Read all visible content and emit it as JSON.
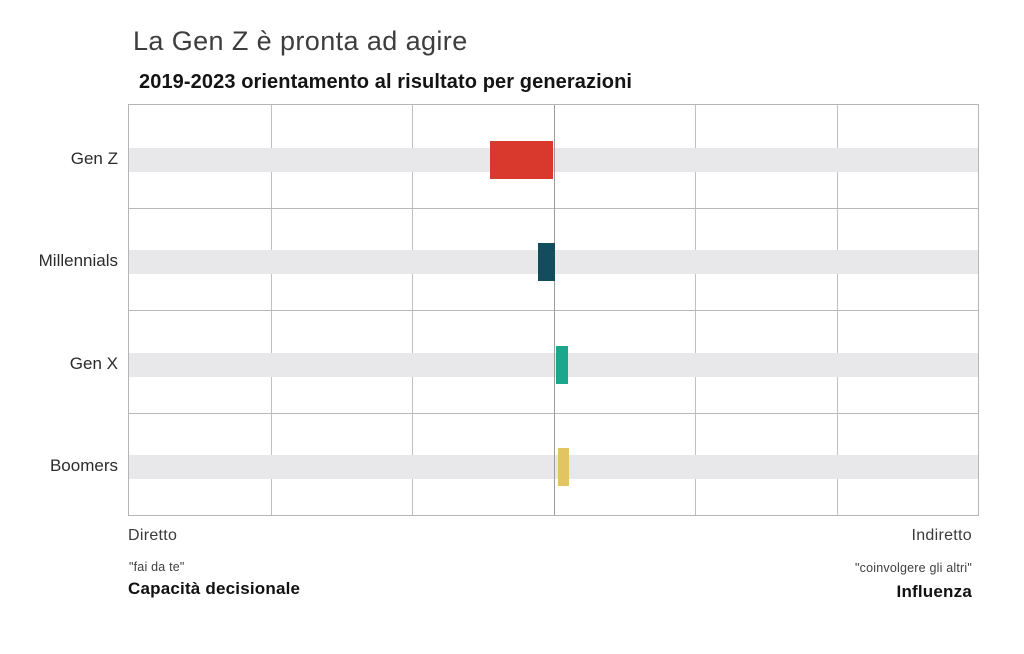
{
  "header": {
    "title": "La Gen Z è pronta ad agire",
    "subtitle": "2019-2023 orientamento al risultato per generazioni"
  },
  "chart_data": {
    "type": "bar",
    "orientation": "horizontal_diverging",
    "title": "La Gen Z è pronta ad agire",
    "subtitle": "2019-2023 orientamento al risultato per generazioni",
    "categories": [
      "Gen Z",
      "Millennials",
      "Gen X",
      "Boomers"
    ],
    "series": [
      {
        "name": "Gen Z",
        "start": -0.45,
        "end": 0.0,
        "color": "#d8392c"
      },
      {
        "name": "Millennials",
        "start": -0.11,
        "end": 0.01,
        "color": "#114d5c"
      },
      {
        "name": "Gen X",
        "start": 0.02,
        "end": 0.1,
        "color": "#1aa78c"
      },
      {
        "name": "Boomers",
        "start": 0.03,
        "end": 0.11,
        "color": "#e2c462"
      }
    ],
    "xlim": [
      -3,
      3
    ],
    "x_tick_labels": [],
    "legend": "none",
    "grid": {
      "vertical_divisions": 6,
      "horizontal_panels": 4,
      "row_highlight_color": "#e8e8ea",
      "gridline_color": "#bfbfbf",
      "center_line_color": "#9c9c9c",
      "frame_color": "#b5b5b5"
    }
  },
  "axis": {
    "left": {
      "direction_label": "Diretto",
      "quote": "\"fai da te\"",
      "title": "Capacità decisionale"
    },
    "right": {
      "direction_label": "Indiretto",
      "quote": "\"coinvolgere gli altri\"",
      "title": "Influenza"
    }
  }
}
